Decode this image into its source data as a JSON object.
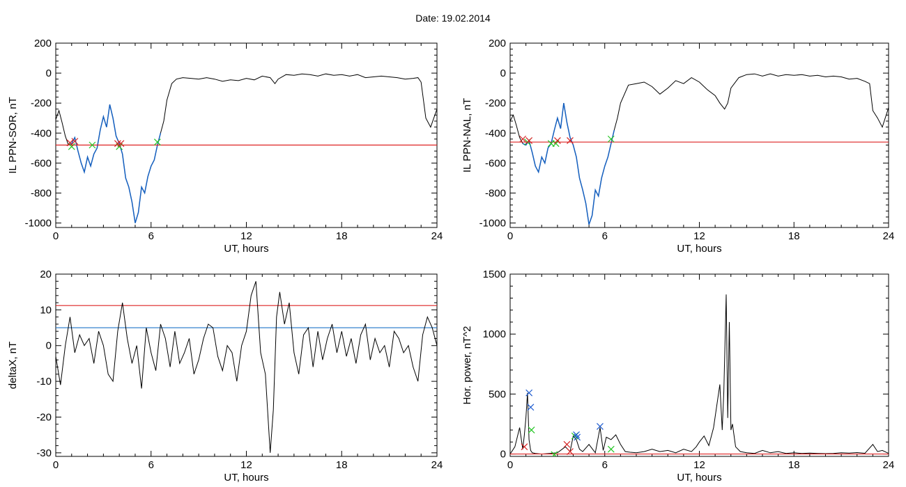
{
  "header": {
    "date_text": "Date:  19.02.2014"
  },
  "chart_data": [
    {
      "id": "p1",
      "type": "line",
      "xlabel": "UT, hours",
      "ylabel": "IL PPN-SOR, nT",
      "xlim": [
        0,
        24
      ],
      "ylim": [
        -1030,
        200
      ],
      "xticks": [
        0,
        6,
        12,
        18,
        24
      ],
      "yticks": [
        200,
        0,
        -200,
        -400,
        -600,
        -800,
        -1000
      ],
      "grid": false,
      "colors": {
        "line": "#000000",
        "highlight": "#1560c0",
        "threshold": "#dd2222"
      },
      "series": [
        {
          "values_key": "x_y",
          "x": [
            0,
            0.2,
            0.4,
            0.6,
            0.8,
            1.0,
            1.2,
            1.4,
            1.6,
            1.8,
            2.0,
            2.2,
            2.4,
            2.6,
            2.8,
            3.0,
            3.2,
            3.4,
            3.6,
            3.8,
            4.0,
            4.2,
            4.4,
            4.6,
            4.8,
            5.0,
            5.2,
            5.4,
            5.6,
            5.8,
            6.0,
            6.2,
            6.4,
            6.6,
            6.8,
            7.0,
            7.3,
            7.6,
            8.0,
            8.5,
            9.0,
            9.5,
            10.0,
            10.5,
            11.0,
            11.5,
            12.0,
            12.5,
            13.0,
            13.5,
            13.8,
            14.0,
            14.5,
            15.0,
            15.5,
            16.0,
            16.5,
            17.0,
            17.5,
            18.0,
            18.5,
            19.0,
            19.5,
            20.0,
            20.5,
            21.0,
            21.5,
            22.0,
            22.5,
            22.8,
            23.0,
            23.3,
            23.6,
            24.0
          ],
          "y": [
            -310,
            -250,
            -330,
            -420,
            -480,
            -470,
            -430,
            -520,
            -600,
            -660,
            -560,
            -620,
            -540,
            -500,
            -380,
            -290,
            -360,
            -210,
            -300,
            -420,
            -470,
            -540,
            -700,
            -760,
            -860,
            -1000,
            -930,
            -760,
            -800,
            -690,
            -620,
            -580,
            -480,
            -400,
            -320,
            -180,
            -70,
            -40,
            -30,
            -35,
            -40,
            -30,
            -40,
            -55,
            -45,
            -50,
            -35,
            -45,
            -20,
            -30,
            -70,
            -40,
            -10,
            -15,
            -5,
            -10,
            -20,
            -5,
            -15,
            -10,
            -20,
            -10,
            -30,
            -25,
            -20,
            -25,
            -30,
            -40,
            -35,
            -30,
            -60,
            -300,
            -360,
            -240
          ]
        }
      ],
      "highlight_range": [
        0.8,
        6.6
      ],
      "threshold": -480,
      "markers_red": [
        [
          0.9,
          -465
        ],
        [
          1.2,
          -455
        ],
        [
          3.9,
          -470
        ],
        [
          4.1,
          -470
        ]
      ],
      "markers_green": [
        [
          1.0,
          -490
        ],
        [
          2.3,
          -480
        ],
        [
          4.0,
          -490
        ],
        [
          6.4,
          -460
        ]
      ]
    },
    {
      "id": "p2",
      "type": "line",
      "xlabel": "UT, hours",
      "ylabel": "IL PPN-NAL, nT",
      "xlim": [
        0,
        24
      ],
      "ylim": [
        -1030,
        200
      ],
      "xticks": [
        0,
        6,
        12,
        18,
        24
      ],
      "yticks": [
        200,
        0,
        -200,
        -400,
        -600,
        -800,
        -1000
      ],
      "grid": false,
      "colors": {
        "line": "#000000",
        "highlight": "#1560c0",
        "threshold": "#dd2222"
      },
      "series": [
        {
          "values_key": "x_y",
          "x": [
            0,
            0.2,
            0.4,
            0.6,
            0.8,
            1.0,
            1.2,
            1.4,
            1.6,
            1.8,
            2.0,
            2.2,
            2.4,
            2.6,
            2.8,
            3.0,
            3.2,
            3.4,
            3.6,
            3.8,
            4.0,
            4.2,
            4.4,
            4.6,
            4.8,
            5.0,
            5.2,
            5.4,
            5.6,
            5.8,
            6.0,
            6.2,
            6.4,
            6.6,
            6.8,
            7.0,
            7.5,
            8.0,
            8.5,
            9.0,
            9.5,
            10.0,
            10.5,
            11.0,
            11.5,
            12.0,
            12.5,
            13.0,
            13.3,
            13.6,
            13.8,
            14.0,
            14.5,
            15.0,
            15.5,
            16.0,
            16.5,
            17.0,
            17.5,
            18.0,
            18.5,
            19.0,
            19.5,
            20.0,
            20.5,
            21.0,
            21.5,
            22.0,
            22.5,
            22.8,
            23.0,
            23.3,
            23.6,
            24.0
          ],
          "y": [
            -320,
            -280,
            -350,
            -430,
            -470,
            -480,
            -450,
            -530,
            -620,
            -660,
            -560,
            -600,
            -500,
            -470,
            -380,
            -300,
            -370,
            -200,
            -330,
            -430,
            -480,
            -560,
            -700,
            -780,
            -870,
            -1010,
            -950,
            -780,
            -820,
            -700,
            -620,
            -560,
            -470,
            -380,
            -300,
            -200,
            -80,
            -70,
            -60,
            -90,
            -140,
            -100,
            -50,
            -70,
            -30,
            -60,
            -110,
            -150,
            -200,
            -240,
            -200,
            -100,
            -30,
            -10,
            -5,
            -20,
            -5,
            -20,
            -10,
            -15,
            -10,
            -20,
            -15,
            -25,
            -20,
            -25,
            -40,
            -35,
            -55,
            -70,
            -250,
            -300,
            -360,
            -230
          ]
        }
      ],
      "highlight_range": [
        0.8,
        6.6
      ],
      "threshold": -460,
      "markers_red": [
        [
          0.8,
          -440
        ],
        [
          1.2,
          -450
        ],
        [
          3.0,
          -450
        ],
        [
          3.8,
          -450
        ]
      ],
      "markers_green": [
        [
          1.1,
          -460
        ],
        [
          2.6,
          -470
        ],
        [
          2.9,
          -470
        ],
        [
          6.4,
          -440
        ]
      ]
    },
    {
      "id": "p3",
      "type": "line",
      "xlabel": "UT, hours",
      "ylabel": "deltaX, nT",
      "xlim": [
        0,
        24
      ],
      "ylim": [
        -31,
        20
      ],
      "xticks": [
        0,
        6,
        12,
        18,
        24
      ],
      "yticks": [
        20,
        10,
        0,
        -10,
        -20,
        -30
      ],
      "grid": false,
      "colors": {
        "line": "#000000",
        "upper": "#dd2222",
        "lower": "#1e74c8"
      },
      "series": [
        {
          "values_key": "x_y",
          "x": [
            0,
            0.3,
            0.6,
            0.9,
            1.2,
            1.5,
            1.8,
            2.1,
            2.4,
            2.7,
            3.0,
            3.3,
            3.6,
            3.9,
            4.2,
            4.5,
            4.8,
            5.1,
            5.4,
            5.7,
            6.0,
            6.3,
            6.6,
            6.9,
            7.2,
            7.5,
            7.8,
            8.1,
            8.4,
            8.7,
            9.0,
            9.3,
            9.6,
            9.9,
            10.2,
            10.5,
            10.8,
            11.1,
            11.4,
            11.7,
            12.0,
            12.3,
            12.6,
            12.9,
            13.2,
            13.5,
            13.7,
            13.9,
            14.1,
            14.4,
            14.7,
            15.0,
            15.3,
            15.6,
            15.9,
            16.2,
            16.5,
            16.8,
            17.1,
            17.4,
            17.7,
            18.0,
            18.3,
            18.6,
            18.9,
            19.2,
            19.5,
            19.8,
            20.1,
            20.4,
            20.7,
            21.0,
            21.3,
            21.6,
            21.9,
            22.2,
            22.5,
            22.8,
            23.1,
            23.4,
            23.7,
            24.0
          ],
          "y": [
            -3,
            -11,
            0,
            8,
            -2,
            3,
            0,
            2,
            -5,
            4,
            0,
            -8,
            -10,
            4,
            12,
            2,
            -5,
            0,
            -12,
            5,
            -2,
            -7,
            6,
            2,
            -6,
            4,
            -5,
            -2,
            2,
            -8,
            -4,
            2,
            6,
            5,
            -3,
            -7,
            0,
            -2,
            -10,
            0,
            4,
            14,
            18,
            -2,
            -8,
            -30,
            -18,
            8,
            15,
            6,
            12,
            -2,
            -8,
            3,
            5,
            -6,
            4,
            -4,
            2,
            6,
            -2,
            4,
            -3,
            2,
            -5,
            3,
            6,
            -4,
            2,
            -2,
            0,
            -6,
            4,
            2,
            -2,
            0,
            -6,
            -10,
            3,
            8,
            5,
            0
          ]
        }
      ],
      "threshold_upper": 11.2,
      "threshold_lower": 5
    },
    {
      "id": "p4",
      "type": "line",
      "xlabel": "UT, hours",
      "ylabel": "Hor. power, nT^2",
      "xlim": [
        0,
        24
      ],
      "ylim": [
        -20,
        1500
      ],
      "xticks": [
        0,
        6,
        12,
        18,
        24
      ],
      "yticks": [
        1500,
        1000,
        500,
        0
      ],
      "grid": false,
      "colors": {
        "line": "#000000",
        "threshold": "#dd2222"
      },
      "series": [
        {
          "values_key": "x_y",
          "x": [
            0,
            0.3,
            0.6,
            0.8,
            0.9,
            1.0,
            1.1,
            1.2,
            1.3,
            1.4,
            1.6,
            2.0,
            2.5,
            3.0,
            3.5,
            3.8,
            4.0,
            4.2,
            4.4,
            4.6,
            5.0,
            5.4,
            5.7,
            5.9,
            6.1,
            6.4,
            6.7,
            7.0,
            7.3,
            7.6,
            8.0,
            8.5,
            9.0,
            9.5,
            10.0,
            10.5,
            11.0,
            11.5,
            11.8,
            12.0,
            12.3,
            12.6,
            12.9,
            13.1,
            13.3,
            13.45,
            13.55,
            13.7,
            13.8,
            13.9,
            14.0,
            14.1,
            14.3,
            14.6,
            15.0,
            15.5,
            16.0,
            16.5,
            17.0,
            17.5,
            18.0,
            18.5,
            19.0,
            19.5,
            20.0,
            20.5,
            21.0,
            21.5,
            22.0,
            22.5,
            23.0,
            23.3,
            23.6,
            24.0
          ],
          "y": [
            0,
            60,
            220,
            40,
            160,
            300,
            510,
            120,
            30,
            10,
            5,
            0,
            5,
            10,
            60,
            20,
            150,
            120,
            40,
            20,
            80,
            10,
            220,
            30,
            140,
            120,
            160,
            80,
            20,
            15,
            10,
            20,
            40,
            20,
            30,
            10,
            40,
            20,
            60,
            100,
            150,
            70,
            220,
            400,
            580,
            200,
            520,
            1330,
            300,
            1100,
            200,
            250,
            60,
            20,
            10,
            5,
            30,
            10,
            20,
            5,
            10,
            5,
            8,
            5,
            3,
            5,
            10,
            8,
            12,
            6,
            80,
            20,
            30,
            5
          ]
        }
      ],
      "threshold": 0,
      "markers_blue": [
        [
          1.2,
          510
        ],
        [
          1.3,
          390
        ],
        [
          4.2,
          160
        ],
        [
          4.25,
          140
        ],
        [
          5.7,
          230
        ]
      ],
      "markers_red": [
        [
          0.9,
          60
        ],
        [
          3.6,
          80
        ],
        [
          3.8,
          20
        ]
      ],
      "markers_green": [
        [
          1.35,
          200
        ],
        [
          2.8,
          -5
        ],
        [
          4.1,
          150
        ],
        [
          6.4,
          40
        ]
      ]
    }
  ]
}
